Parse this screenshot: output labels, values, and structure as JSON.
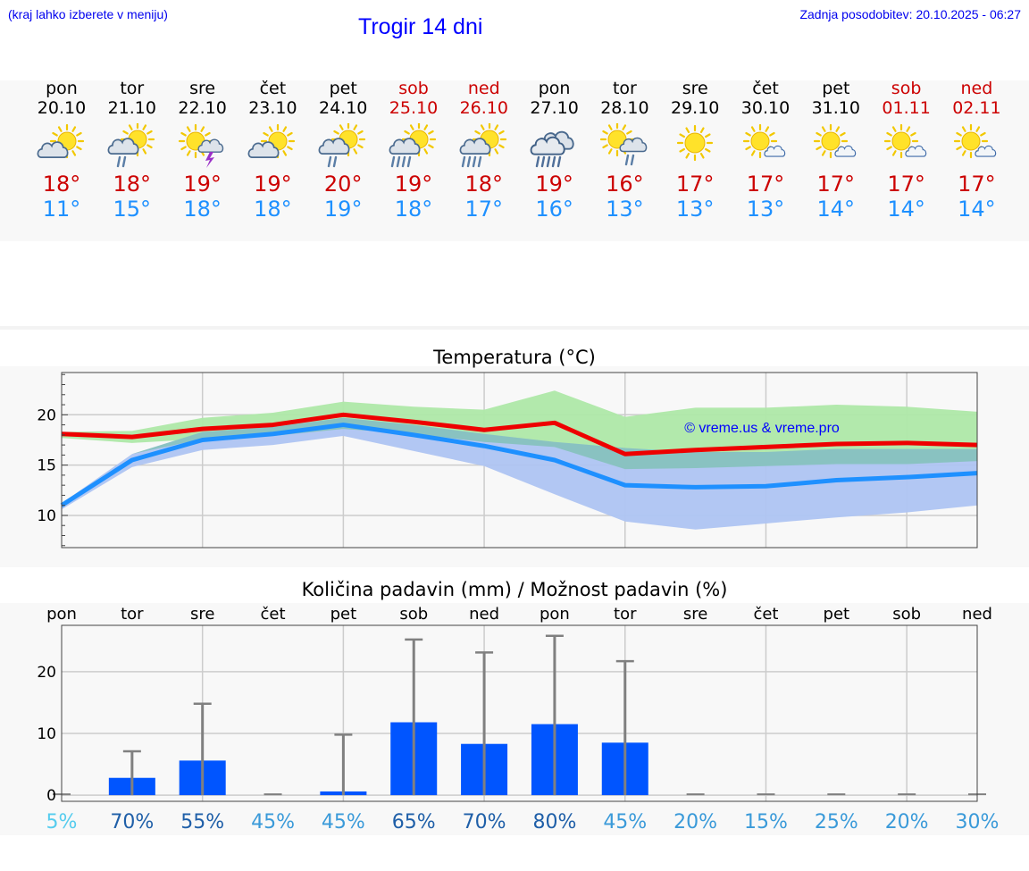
{
  "header": {
    "note": "(kraj lahko izberete v meniju)",
    "title": "Trogir 14 dni",
    "updated": "Zadnja posodobitev: 20.10.2025 - 06:27"
  },
  "days": [
    {
      "name": "pon",
      "date": "20.10",
      "tmax": "18°",
      "tmin": "11°",
      "weekend": false,
      "icon": "partly-cloudy-icon"
    },
    {
      "name": "tor",
      "date": "21.10",
      "tmax": "18°",
      "tmin": "15°",
      "weekend": false,
      "icon": "partly-cloudy-rain-icon"
    },
    {
      "name": "sre",
      "date": "22.10",
      "tmax": "19°",
      "tmin": "18°",
      "weekend": false,
      "icon": "sun-thunderstorm-icon"
    },
    {
      "name": "čet",
      "date": "23.10",
      "tmax": "19°",
      "tmin": "18°",
      "weekend": false,
      "icon": "partly-cloudy-icon"
    },
    {
      "name": "pet",
      "date": "24.10",
      "tmax": "20°",
      "tmin": "19°",
      "weekend": false,
      "icon": "partly-cloudy-rain-icon"
    },
    {
      "name": "sob",
      "date": "25.10",
      "tmax": "19°",
      "tmin": "18°",
      "weekend": true,
      "icon": "partly-cloudy-heavy-rain-icon"
    },
    {
      "name": "ned",
      "date": "26.10",
      "tmax": "18°",
      "tmin": "17°",
      "weekend": true,
      "icon": "partly-cloudy-heavy-rain-icon"
    },
    {
      "name": "pon",
      "date": "27.10",
      "tmax": "19°",
      "tmin": "16°",
      "weekend": false,
      "icon": "cloudy-heavy-rain-icon"
    },
    {
      "name": "tor",
      "date": "28.10",
      "tmax": "16°",
      "tmin": "13°",
      "weekend": false,
      "icon": "sun-cloud-rain-icon"
    },
    {
      "name": "sre",
      "date": "29.10",
      "tmax": "17°",
      "tmin": "13°",
      "weekend": false,
      "icon": "sun-icon"
    },
    {
      "name": "čet",
      "date": "30.10",
      "tmax": "17°",
      "tmin": "13°",
      "weekend": false,
      "icon": "sun-small-cloud-icon"
    },
    {
      "name": "pet",
      "date": "31.10",
      "tmax": "17°",
      "tmin": "14°",
      "weekend": false,
      "icon": "sun-small-cloud-icon"
    },
    {
      "name": "sob",
      "date": "01.11",
      "tmax": "17°",
      "tmin": "14°",
      "weekend": true,
      "icon": "sun-small-cloud-icon"
    },
    {
      "name": "ned",
      "date": "02.11",
      "tmax": "17°",
      "tmin": "14°",
      "weekend": true,
      "icon": "sun-small-cloud-icon"
    }
  ],
  "chart_data": [
    {
      "type": "line",
      "title": "Temperatura (°C)",
      "watermark": "© vreme.us & vreme.pro",
      "x": [
        0,
        1,
        2,
        3,
        4,
        5,
        6,
        7,
        8,
        9,
        10,
        11,
        12,
        13
      ],
      "ylim": [
        6.8,
        24.2
      ],
      "yticks": [
        10,
        15,
        20
      ],
      "series": [
        {
          "name": "max",
          "color": "#ee0000",
          "values": [
            18.1,
            17.8,
            18.6,
            19.0,
            20.0,
            19.3,
            18.5,
            19.2,
            16.1,
            16.5,
            16.8,
            17.1,
            17.2,
            17.0
          ]
        },
        {
          "name": "min",
          "color": "#1e90ff",
          "values": [
            11.0,
            15.5,
            17.5,
            18.1,
            19.0,
            18.0,
            16.9,
            15.5,
            13.0,
            12.8,
            12.9,
            13.5,
            13.8,
            14.2
          ]
        }
      ],
      "bands": [
        {
          "name": "max-range",
          "color": "#aee8a8",
          "upper": [
            18.3,
            18.4,
            19.7,
            20.2,
            21.3,
            20.8,
            20.5,
            22.4,
            19.8,
            20.7,
            20.7,
            21.0,
            20.8,
            20.3
          ],
          "lower": [
            17.7,
            17.2,
            17.6,
            17.9,
            18.6,
            18.1,
            17.3,
            16.8,
            14.6,
            14.7,
            14.9,
            15.1,
            15.1,
            15.4
          ]
        },
        {
          "name": "min-range",
          "color": "#aec4f2",
          "upper": [
            11.2,
            16.1,
            18.3,
            18.8,
            19.7,
            19.0,
            18.1,
            17.3,
            16.7,
            16.3,
            16.3,
            16.6,
            16.6,
            16.6
          ],
          "lower": [
            10.6,
            14.8,
            16.5,
            17.0,
            17.9,
            16.4,
            14.9,
            12.1,
            9.4,
            8.6,
            9.2,
            9.8,
            10.3,
            11.0
          ]
        }
      ]
    },
    {
      "type": "bar",
      "title": "Količina padavin (mm) / Možnost padavin (%)",
      "categories": [
        "pon",
        "tor",
        "sre",
        "čet",
        "pet",
        "sob",
        "ned",
        "pon",
        "tor",
        "sre",
        "čet",
        "pet",
        "sob",
        "ned"
      ],
      "ylim": [
        -1,
        27.5
      ],
      "yticks": [
        0,
        10,
        20
      ],
      "yticklabels": [
        "0",
        "10",
        "20"
      ],
      "values": [
        0,
        2.8,
        5.6,
        0,
        0.6,
        11.8,
        8.3,
        11.5,
        8.5,
        0,
        0,
        0,
        0,
        0
      ],
      "error_max": [
        0,
        7.1,
        14.8,
        0,
        9.8,
        25.2,
        23.1,
        25.8,
        21.7,
        0,
        0,
        0.1,
        0,
        0
      ],
      "bar_color": "#0055ff",
      "probability": [
        "5%",
        "70%",
        "55%",
        "45%",
        "45%",
        "65%",
        "70%",
        "80%",
        "45%",
        "20%",
        "15%",
        "25%",
        "20%",
        "30%"
      ],
      "probability_colors": [
        "#55ccee",
        "#1f5fa8",
        "#1f5fa8",
        "#3a9ad9",
        "#3a9ad9",
        "#1f5fa8",
        "#1f5fa8",
        "#1f5fa8",
        "#3a9ad9",
        "#3a9ad9",
        "#3a9ad9",
        "#3a9ad9",
        "#3a9ad9",
        "#3a9ad9"
      ]
    }
  ]
}
